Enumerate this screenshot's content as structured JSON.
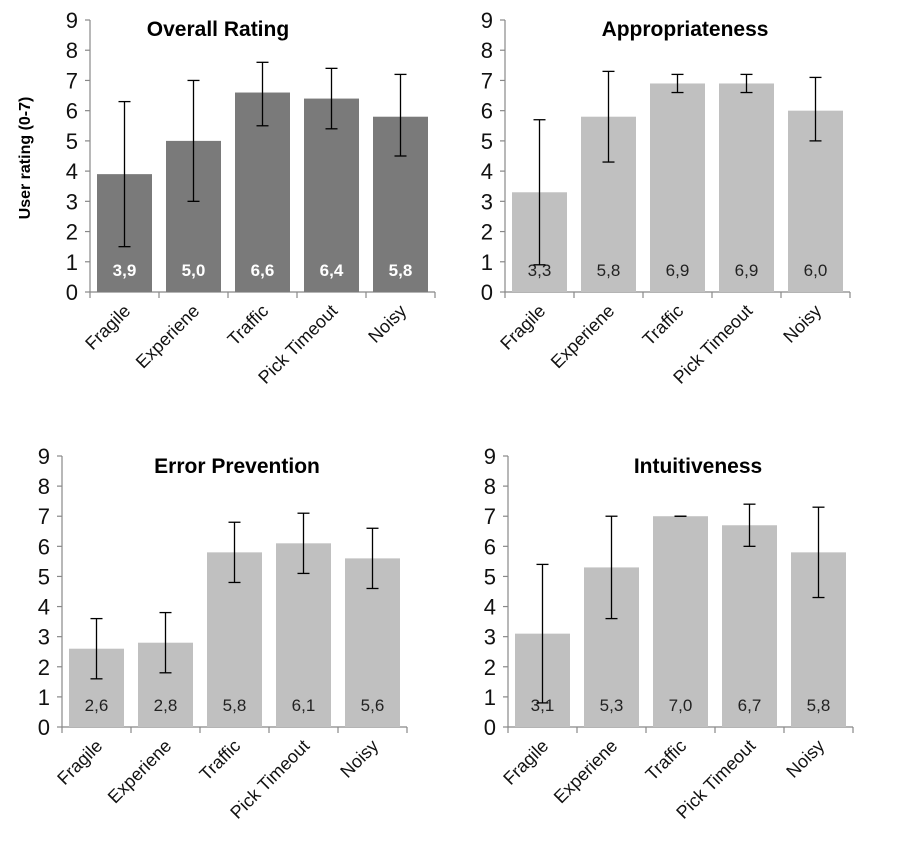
{
  "chart_data": [
    {
      "type": "bar",
      "title": "Overall Rating",
      "ylabel": "User rating (0-7)",
      "xlabel": "",
      "ylim": [
        0,
        9
      ],
      "yticks": [
        0,
        1,
        2,
        3,
        4,
        5,
        6,
        7,
        8,
        9
      ],
      "categories": [
        "Fragile",
        "Experiene",
        "Traffic",
        "Pick Timeout",
        "Noisy"
      ],
      "values": [
        3.9,
        5.0,
        6.6,
        6.4,
        5.8
      ],
      "value_labels": [
        "3,9",
        "5,0",
        "6,6",
        "6,4",
        "5,8"
      ],
      "error_low": [
        1.5,
        3.0,
        5.5,
        5.4,
        4.5
      ],
      "error_high": [
        6.3,
        7.0,
        7.6,
        7.4,
        7.2
      ],
      "bar_color": "#7a7a7a",
      "label_color": "#ffffff",
      "grid": false
    },
    {
      "type": "bar",
      "title": "Appropriateness",
      "ylabel": "",
      "xlabel": "",
      "ylim": [
        0,
        9
      ],
      "yticks": [
        0,
        1,
        2,
        3,
        4,
        5,
        6,
        7,
        8,
        9
      ],
      "categories": [
        "Fragile",
        "Experiene",
        "Traffic",
        "Pick Timeout",
        "Noisy"
      ],
      "values": [
        3.3,
        5.8,
        6.9,
        6.9,
        6.0
      ],
      "value_labels": [
        "3,3",
        "5,8",
        "6,9",
        "6,9",
        "6,0"
      ],
      "error_low": [
        0.9,
        4.3,
        6.6,
        6.6,
        5.0
      ],
      "error_high": [
        5.7,
        7.3,
        7.2,
        7.2,
        7.1
      ],
      "bar_color": "#c0c0c0",
      "label_color": "#222222",
      "grid": false
    },
    {
      "type": "bar",
      "title": "Error Prevention",
      "ylabel": "",
      "xlabel": "",
      "ylim": [
        0,
        9
      ],
      "yticks": [
        0,
        1,
        2,
        3,
        4,
        5,
        6,
        7,
        8,
        9
      ],
      "categories": [
        "Fragile",
        "Experiene",
        "Traffic",
        "Pick Timeout",
        "Noisy"
      ],
      "values": [
        2.6,
        2.8,
        5.8,
        6.1,
        5.6
      ],
      "value_labels": [
        "2,6",
        "2,8",
        "5,8",
        "6,1",
        "5,6"
      ],
      "error_low": [
        1.6,
        1.8,
        4.8,
        5.1,
        4.6
      ],
      "error_high": [
        3.6,
        3.8,
        6.8,
        7.1,
        6.6
      ],
      "bar_color": "#c0c0c0",
      "label_color": "#222222",
      "grid": false
    },
    {
      "type": "bar",
      "title": "Intuitiveness",
      "ylabel": "",
      "xlabel": "",
      "ylim": [
        0,
        9
      ],
      "yticks": [
        0,
        1,
        2,
        3,
        4,
        5,
        6,
        7,
        8,
        9
      ],
      "categories": [
        "Fragile",
        "Experiene",
        "Traffic",
        "Pick Timeout",
        "Noisy"
      ],
      "values": [
        3.1,
        5.3,
        7.0,
        6.7,
        5.8
      ],
      "value_labels": [
        "3,1",
        "5,3",
        "7,0",
        "6,7",
        "5,8"
      ],
      "error_low": [
        0.8,
        3.6,
        7.0,
        6.0,
        4.3
      ],
      "error_high": [
        5.4,
        7.0,
        7.0,
        7.4,
        7.3
      ],
      "bar_color": "#c0c0c0",
      "label_color": "#222222",
      "grid": false
    }
  ]
}
